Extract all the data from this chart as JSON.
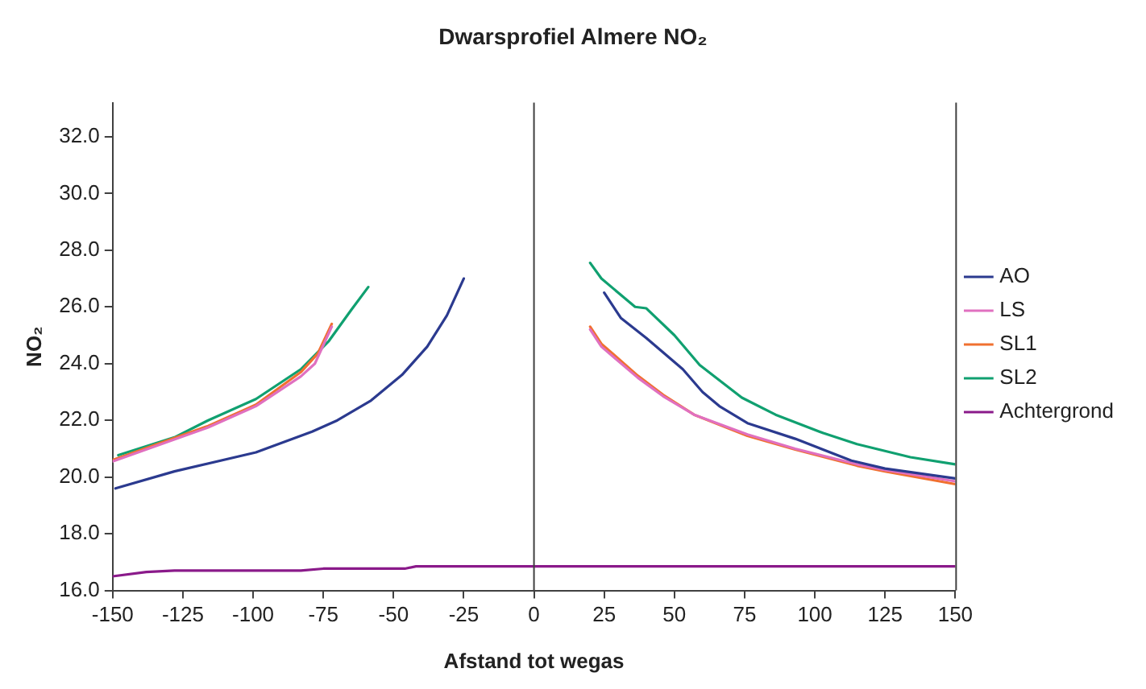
{
  "chart_data": {
    "type": "line",
    "title": "Dwarsprofiel Almere NO₂",
    "xlabel": "Afstand tot wegas",
    "ylabel": "NO₂",
    "xlim": [
      -150,
      150
    ],
    "xticks": [
      -150,
      -125,
      -100,
      -75,
      -50,
      -25,
      0,
      25,
      50,
      75,
      100,
      125,
      150
    ],
    "ylim": [
      16,
      33.2
    ],
    "yticks": [
      {
        "value": 16,
        "label": "16.0"
      },
      {
        "value": 18,
        "label": "18.0"
      },
      {
        "value": 20,
        "label": "20.0"
      },
      {
        "value": 22,
        "label": "22.0"
      },
      {
        "value": 24,
        "label": "24.0"
      },
      {
        "value": 26,
        "label": "26.0"
      },
      {
        "value": 28,
        "label": "28.0"
      },
      {
        "value": 30,
        "label": "30.0"
      },
      {
        "value": 32,
        "label": "32.0"
      }
    ],
    "grid": false,
    "legend": "right",
    "marker": "none",
    "line_style": "solid",
    "ref_lines": [
      {
        "axis": "x",
        "value": 0,
        "color": "#404040"
      }
    ],
    "series": [
      {
        "name": "AO",
        "color": "#2b3a8f",
        "x": [
          -149,
          -128,
          -99,
          -79,
          -70,
          -58,
          -47,
          -38,
          -31,
          -25,
          null,
          25,
          31,
          40,
          53,
          60,
          66,
          76,
          93,
          113,
          125,
          150
        ],
        "values": [
          19.6,
          20.2,
          20.87,
          21.6,
          22.0,
          22.7,
          23.6,
          24.6,
          25.7,
          27.0,
          null,
          26.5,
          25.6,
          24.9,
          23.8,
          23.0,
          22.5,
          21.9,
          21.35,
          20.58,
          20.3,
          19.95
        ]
      },
      {
        "name": "LS",
        "color": "#e070c0",
        "x": [
          -150,
          -116,
          -99,
          -83,
          -78,
          -72,
          null,
          20,
          24,
          37,
          46,
          57,
          76,
          93,
          115,
          125,
          150
        ],
        "values": [
          20.55,
          21.75,
          22.5,
          23.55,
          24.0,
          25.3,
          null,
          25.2,
          24.6,
          23.5,
          22.85,
          22.2,
          21.5,
          21.0,
          20.45,
          20.25,
          19.85
        ]
      },
      {
        "name": "SL1",
        "color": "#f07030",
        "x": [
          -150,
          -116,
          -99,
          -83,
          -77,
          -72,
          null,
          20,
          24,
          37,
          46,
          57,
          76,
          93,
          115,
          125,
          150
        ],
        "values": [
          20.6,
          21.8,
          22.55,
          23.7,
          24.35,
          25.4,
          null,
          25.3,
          24.7,
          23.57,
          22.9,
          22.2,
          21.45,
          20.97,
          20.4,
          20.2,
          19.75
        ]
      },
      {
        "name": "SL2",
        "color": "#10a070",
        "x": [
          -148,
          -128,
          -116,
          -99,
          -83,
          -73,
          -65,
          -59,
          null,
          20,
          24,
          36,
          40,
          50,
          59,
          74,
          86,
          103,
          115,
          134,
          150
        ],
        "values": [
          20.77,
          21.4,
          22.0,
          22.75,
          23.8,
          24.8,
          25.9,
          26.7,
          null,
          27.55,
          27.0,
          26.0,
          25.95,
          25.0,
          23.95,
          22.8,
          22.2,
          21.55,
          21.16,
          20.7,
          20.45
        ]
      },
      {
        "name": "Achtergrond",
        "color": "#8a1a8a",
        "x": [
          -150,
          -138,
          -128,
          -83,
          -75,
          -46,
          -42,
          150
        ],
        "values": [
          16.5,
          16.65,
          16.7,
          16.7,
          16.77,
          16.77,
          16.85,
          16.85
        ]
      }
    ]
  }
}
